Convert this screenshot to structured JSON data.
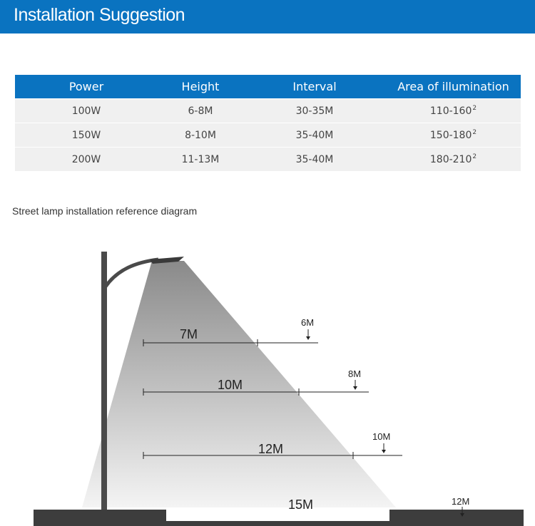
{
  "header": {
    "title": "Installation Suggestion"
  },
  "table": {
    "columns": [
      "Power",
      "Height",
      "Interval",
      "Area of illumination"
    ],
    "rows": [
      {
        "power": "100W",
        "height": "6-8M",
        "interval": "30-35M",
        "area": "110-160",
        "area_sup": "2"
      },
      {
        "power": "150W",
        "height": "8-10M",
        "interval": "35-40M",
        "area": "150-180",
        "area_sup": "2"
      },
      {
        "power": "200W",
        "height": "11-13M",
        "interval": "35-40M",
        "area": "180-210",
        "area_sup": "2"
      }
    ]
  },
  "diagram": {
    "caption": "Street lamp installation reference diagram",
    "spans": [
      {
        "width_label": "7M",
        "height_label": "6M"
      },
      {
        "width_label": "10M",
        "height_label": "8M"
      },
      {
        "width_label": "12M",
        "height_label": "10M"
      },
      {
        "width_label": "15M",
        "height_label": "12M"
      }
    ],
    "colors": {
      "pole": "#4a4a4a",
      "ground": "#3d3d3d",
      "beam_top": "#8a8a8a",
      "beam_bottom": "#f4f4f4",
      "accent": "#0a73c0"
    }
  }
}
